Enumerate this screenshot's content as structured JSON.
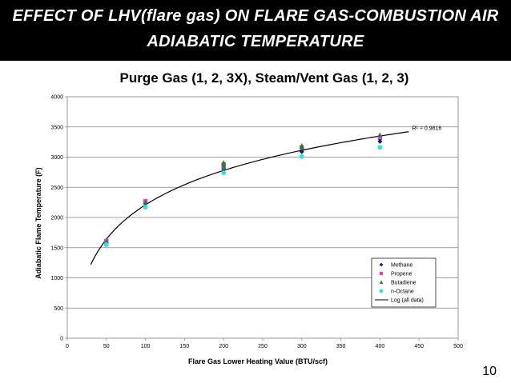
{
  "slide": {
    "title_line1": "EFFECT OF LHV(flare gas) ON FLARE GAS-COMBUSTION AIR",
    "title_line2": "ADIABATIC TEMPERATURE",
    "page_number": "10"
  },
  "colors": {
    "banner_bg": "#000000",
    "banner_text": "#ffffff",
    "methane": "#1a1a6e",
    "propene": "#e040c8",
    "butadiene": "#2e7d32",
    "n_octane": "#33e0e8",
    "trendline": "#000000"
  },
  "chart_data": {
    "type": "scatter",
    "title": "Purge Gas (1, 2, 3X), Steam/Vent Gas (1, 2, 3)",
    "xlabel": "Flare Gas Lower Heating Value (BTU/scf)",
    "ylabel": "Adiabatic Flame Temperature (F)",
    "xlim": [
      0,
      500
    ],
    "ylim": [
      0,
      4000
    ],
    "xticks": [
      "0",
      "50",
      "100",
      "150",
      "200",
      "250",
      "300",
      "350",
      "400",
      "450",
      "500"
    ],
    "yticks": [
      "0",
      "500",
      "1000",
      "1500",
      "2000",
      "2500",
      "3000",
      "3500",
      "4000"
    ],
    "grid": "horizontal",
    "legend_position": "bottom-right",
    "series": [
      {
        "name": "Methane",
        "marker": "diamond",
        "color": "#1a1a6e",
        "x": [
          50,
          100,
          200,
          200,
          300,
          300,
          400,
          400
        ],
        "y": [
          1580,
          2230,
          2800,
          2850,
          3090,
          3140,
          3260,
          3300
        ]
      },
      {
        "name": "Propene",
        "marker": "square",
        "color": "#e040c8",
        "x": [
          50,
          100,
          200,
          200,
          300,
          400
        ],
        "y": [
          1610,
          2270,
          2830,
          2880,
          3160,
          3330
        ]
      },
      {
        "name": "Butadiene",
        "marker": "triangle",
        "color": "#2e7d32",
        "x": [
          50,
          100,
          200,
          200,
          200,
          300,
          300,
          400
        ],
        "y": [
          1600,
          2250,
          2840,
          2880,
          2910,
          3160,
          3190,
          3370
        ]
      },
      {
        "name": "n-Octane",
        "marker": "circle",
        "color": "#33e0e8",
        "x": [
          50,
          100,
          200,
          300,
          400
        ],
        "y": [
          1550,
          2170,
          2740,
          3010,
          3160
        ]
      }
    ],
    "trendline": {
      "name": "Log (all data)",
      "kind": "logarithmic",
      "x_range": [
        30,
        437
      ],
      "coefficients": {
        "a": 822,
        "b": -1576
      },
      "label": "R² = 0.9816"
    }
  }
}
